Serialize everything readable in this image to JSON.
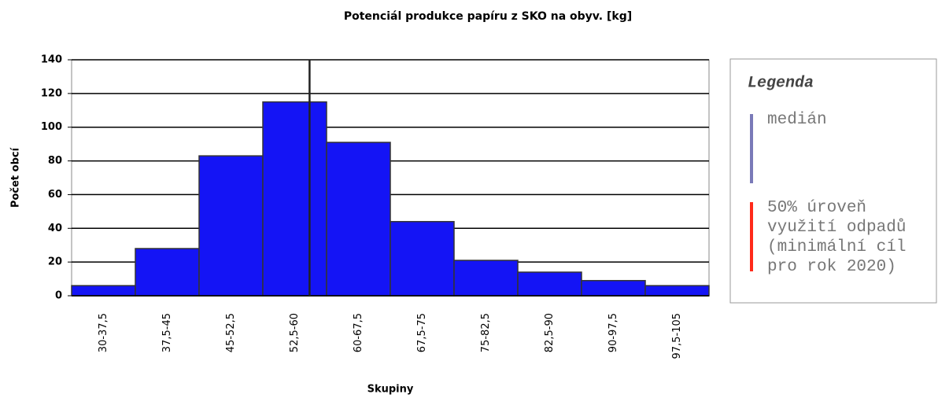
{
  "chart_data": {
    "type": "histogram",
    "title": "Potenciál produkce papíru z SKO na obyv. [kg]",
    "x_label": "Skupiny",
    "y_label": "Počet obcí",
    "categories": [
      "30-37,5",
      "37,5-45",
      "45-52,5",
      "52,5-60",
      "60-67,5",
      "67,5-75",
      "75-82,5",
      "82,5-90",
      "90-97,5",
      "97,5-105"
    ],
    "bins": [
      30,
      37.5,
      45,
      52.5,
      60,
      67.5,
      75,
      82.5,
      90,
      97.5,
      105
    ],
    "values": [
      6,
      28,
      83,
      115,
      91,
      44,
      21,
      14,
      9,
      6
    ],
    "color": "#1414f5",
    "ylim": [
      0,
      140
    ],
    "yticks": [
      0,
      20,
      40,
      60,
      80,
      100,
      120,
      140
    ],
    "grid": true,
    "median": 58,
    "legend": {
      "title": "Legenda",
      "entries": [
        {
          "name": "medián",
          "color": "#7a7ab8"
        },
        {
          "name": "50% úroveň využití odpadů (minimální cíl pro rok 2020)",
          "color": "#ff2a1a"
        }
      ]
    }
  }
}
